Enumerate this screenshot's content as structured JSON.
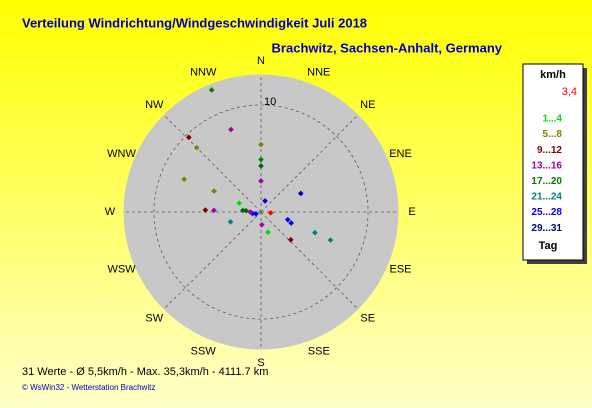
{
  "chart_data": {
    "type": "polar-scatter",
    "title": "Verteilung Windrichtung/Windgeschwindigkeit  Juli 2018",
    "subtitle": "Brachwitz, Sachsen-Anhalt, Germany",
    "directions": [
      "N",
      "NNE",
      "NE",
      "ENE",
      "E",
      "ESE",
      "SE",
      "SSE",
      "S",
      "SSW",
      "SW",
      "WSW",
      "W",
      "WNW",
      "NW",
      "NNW"
    ],
    "rlim": [
      0,
      12.8
    ],
    "rticks": [
      10
    ],
    "points": {
      "angle": [
        338,
        340,
        0,
        0,
        0,
        0,
        316,
        315,
        293,
        294,
        272,
        272,
        292,
        275,
        275,
        252,
        260,
        250,
        20,
        65,
        95,
        106,
        110,
        111,
        112,
        133,
        161,
        176,
        270
      ],
      "values": [
        12.3,
        8.2,
        6.3,
        4.9,
        4.3,
        2.9,
        9.7,
        8.5,
        7.8,
        4.8,
        5.2,
        4.4,
        2.2,
        1.7,
        1.4,
        3.0,
        0.8,
        0.5,
        1.1,
        4.1,
        0.9,
        2.6,
        3.0,
        5.4,
        7.0,
        3.8,
        2.0,
        1.2,
        1.0
      ],
      "colors": [
        "#008000",
        "#a000a0",
        "#808000",
        "#008000",
        "#006400",
        "#a000a0",
        "#800000",
        "#808000",
        "#808000",
        "#808000",
        "#800000",
        "#a000a0",
        "#00e000",
        "#006400",
        "#006400",
        "#008080",
        "#0000ff",
        "#0000ff",
        "#0000c0",
        "#0000c0",
        "#ff0000",
        "#0000ff",
        "#0000ff",
        "#008080",
        "#008080",
        "#800000",
        "#00e000",
        "#a000a0",
        "#a000a0"
      ]
    },
    "legend": {
      "title": "km/h",
      "note": "3,4",
      "note_color": "#ff0000",
      "entries": [
        {
          "label": "1...4",
          "color": "#00e000"
        },
        {
          "label": "5...8",
          "color": "#808000"
        },
        {
          "label": "9...12",
          "color": "#800000"
        },
        {
          "label": "13...16",
          "color": "#a000a0"
        },
        {
          "label": "17...20",
          "color": "#008000"
        },
        {
          "label": "21...24",
          "color": "#008080"
        },
        {
          "label": "25...28",
          "color": "#0000ff"
        },
        {
          "label": "29...31",
          "color": "#000080"
        }
      ],
      "footer": "Tag"
    },
    "summary": "31 Werte  -  Ø 5,5km/h  -  Max. 35,3km/h  -  4111.7 km",
    "credit": "© WsWin32  -  Wetterstation Brachwitz"
  }
}
